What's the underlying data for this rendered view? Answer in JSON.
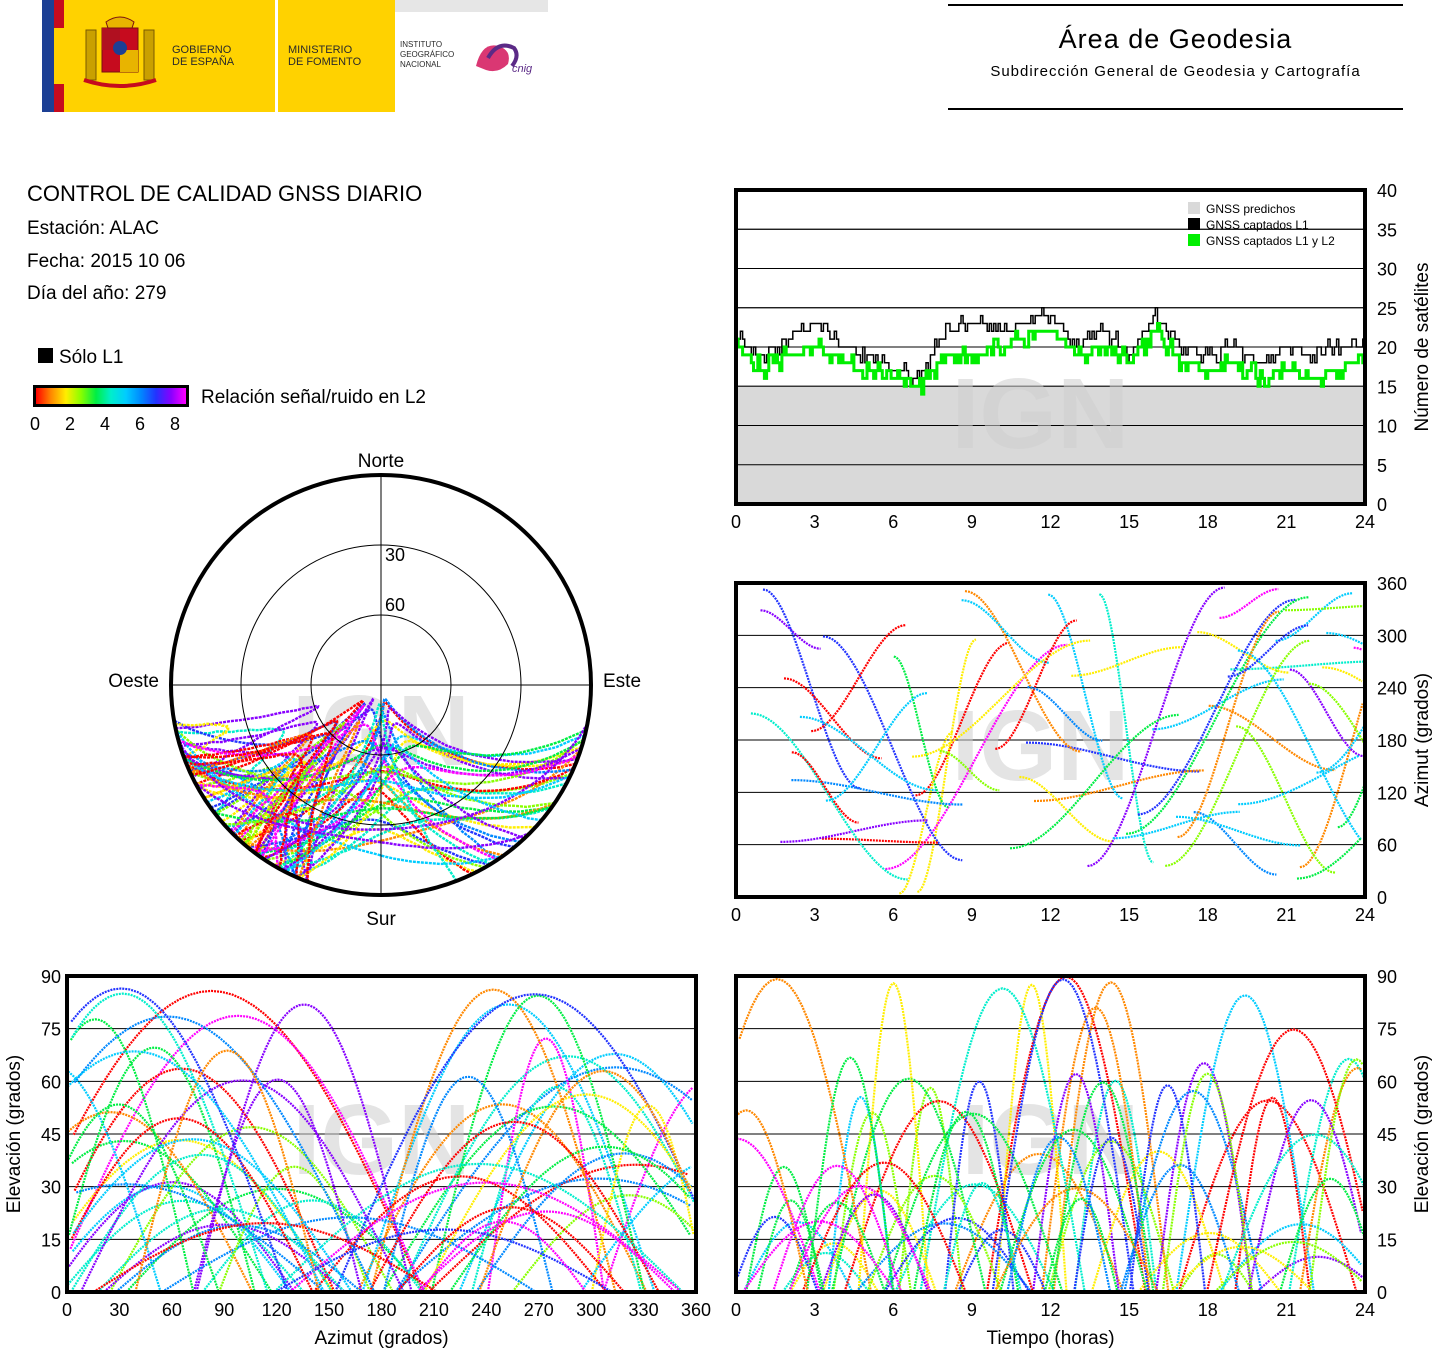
{
  "header": {
    "gov_line1": "GOBIERNO",
    "gov_line2": "DE ESPAÑA",
    "min_line1": "MINISTERIO",
    "min_line2": "DE FOMENTO",
    "ign_line1": "INSTITUTO",
    "ign_line2": "GEOGRÁFICO",
    "ign_line3": "NACIONAL",
    "cnig_logo_text": "cnig",
    "area_title": "Área de Geodesia",
    "area_subtitle": "Subdirección General de Geodesia y Cartografía"
  },
  "info": {
    "title": "CONTROL DE CALIDAD GNSS DIARIO",
    "station": "Estación: ALAC",
    "date": "Fecha: 2015 10 06",
    "doy": "Día del año: 279",
    "legend_l1": "Sólo L1",
    "colorbar_label": "Relación señal/ruido en L2",
    "colorbar_ticks": [
      "0",
      "2",
      "4",
      "6",
      "8"
    ]
  },
  "colors": {
    "predicted": "#d9d9d9",
    "l1": "#000000",
    "l1l2": "#00ee00",
    "snr_scale": [
      "#ff0000",
      "#ff8800",
      "#ffee00",
      "#88ff00",
      "#00ee44",
      "#00eecc",
      "#00ccff",
      "#0088ff",
      "#2233ff",
      "#8800ff",
      "#ff00ff"
    ]
  },
  "watermark": "IGN",
  "chart_data": [
    {
      "type": "line",
      "xlim": [
        0,
        24
      ],
      "ylim": [
        0,
        40
      ],
      "x_ticks": [
        "0",
        "3",
        "6",
        "9",
        "12",
        "15",
        "18",
        "21",
        "24"
      ],
      "y_ticks": [
        "0",
        "5",
        "10",
        "15",
        "20",
        "25",
        "30",
        "35",
        "40"
      ],
      "ylabel": "Número de satélites",
      "legend": [
        "GNSS predichos",
        "GNSS captados L1",
        "GNSS captados L1 y L2"
      ],
      "legend_position": "top-right",
      "grid": true,
      "series": [
        {
          "name": "GNSS predichos",
          "x": [
            0,
            24
          ],
          "values": [
            15,
            15
          ]
        },
        {
          "name": "GNSS captados L1",
          "x": [
            0,
            1,
            2,
            3,
            4,
            5,
            6,
            7,
            8,
            9,
            10,
            11,
            12,
            13,
            14,
            15,
            16,
            17,
            18,
            19,
            20,
            21,
            22,
            23,
            24
          ],
          "values": [
            21,
            19,
            21,
            23,
            20,
            19,
            17,
            16,
            22,
            23,
            22,
            23,
            24,
            20,
            22,
            19,
            24,
            20,
            19,
            20,
            18,
            20,
            19,
            20,
            21
          ]
        },
        {
          "name": "GNSS captados L1 y L2",
          "x": [
            0,
            1,
            2,
            3,
            4,
            5,
            6,
            7,
            8,
            9,
            10,
            11,
            12,
            13,
            14,
            15,
            16,
            17,
            18,
            19,
            20,
            21,
            22,
            23,
            24
          ],
          "values": [
            20,
            17,
            19,
            20,
            18,
            17,
            16,
            15,
            19,
            19,
            20,
            21,
            22,
            19,
            20,
            18,
            22,
            18,
            17,
            18,
            16,
            17,
            16,
            17,
            19
          ]
        }
      ]
    },
    {
      "type": "scatter",
      "xlim": [
        0,
        24
      ],
      "ylim": [
        0,
        360
      ],
      "x_ticks": [
        "0",
        "3",
        "6",
        "9",
        "12",
        "15",
        "18",
        "21",
        "24"
      ],
      "y_ticks": [
        "0",
        "60",
        "120",
        "180",
        "240",
        "300",
        "360"
      ],
      "ylabel": "Azimut (grados)",
      "grid": true
    },
    {
      "type": "scatter",
      "title": "polar skyplot",
      "labels": {
        "north": "Norte",
        "south": "Sur",
        "west": "Oeste",
        "east": "Este"
      },
      "rings": [
        "30",
        "60"
      ]
    },
    {
      "type": "scatter",
      "xlim": [
        0,
        360
      ],
      "ylim": [
        0,
        90
      ],
      "x_ticks": [
        "0",
        "30",
        "60",
        "90",
        "120",
        "150",
        "180",
        "210",
        "240",
        "270",
        "300",
        "330",
        "360"
      ],
      "y_ticks": [
        "0",
        "15",
        "30",
        "45",
        "60",
        "75",
        "90"
      ],
      "xlabel": "Azimut (grados)",
      "ylabel": "Elevación (grados)",
      "grid": true
    },
    {
      "type": "scatter",
      "xlim": [
        0,
        24
      ],
      "ylim": [
        0,
        90
      ],
      "x_ticks": [
        "0",
        "3",
        "6",
        "9",
        "12",
        "15",
        "18",
        "21",
        "24"
      ],
      "y_ticks": [
        "0",
        "15",
        "30",
        "45",
        "60",
        "75",
        "90"
      ],
      "xlabel": "Tiempo (horas)",
      "ylabel": "Elevación (grados)",
      "grid": true
    }
  ]
}
